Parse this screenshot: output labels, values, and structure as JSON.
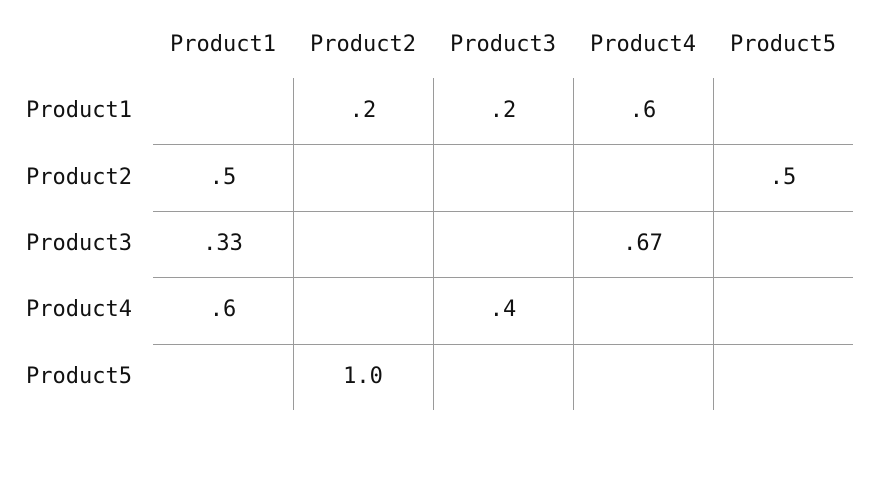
{
  "chart_data": {
    "type": "table",
    "columns": [
      "Product1",
      "Product2",
      "Product3",
      "Product4",
      "Product5"
    ],
    "rows": [
      "Product1",
      "Product2",
      "Product3",
      "Product4",
      "Product5"
    ],
    "cells": [
      [
        "",
        ".2",
        ".2",
        ".6",
        ""
      ],
      [
        ".5",
        "",
        "",
        "",
        ".5"
      ],
      [
        ".33",
        "",
        "",
        ".67",
        ""
      ],
      [
        ".6",
        "",
        ".4",
        "",
        ""
      ],
      [
        "",
        "1.0",
        "",
        "",
        ""
      ]
    ],
    "gridline_color": "#9a9a9a",
    "text_color": "#111111"
  }
}
